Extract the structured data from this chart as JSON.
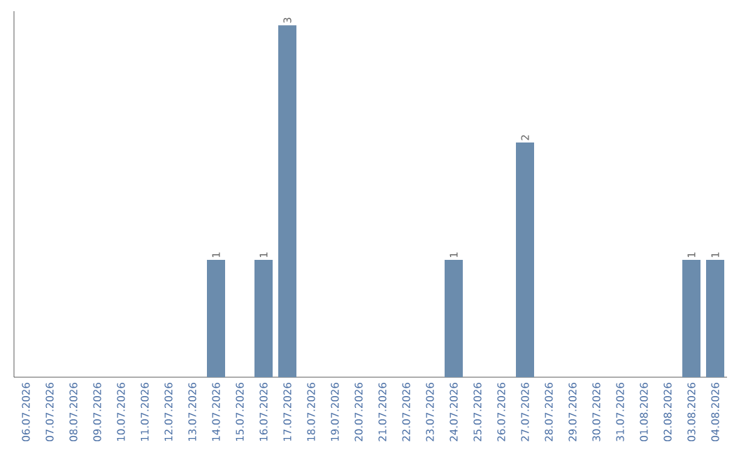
{
  "chart_data": {
    "type": "bar",
    "categories": [
      "06.07.2026",
      "07.07.2026",
      "08.07.2026",
      "09.07.2026",
      "10.07.2026",
      "11.07.2026",
      "12.07.2026",
      "13.07.2026",
      "14.07.2026",
      "15.07.2026",
      "16.07.2026",
      "17.07.2026",
      "18.07.2026",
      "19.07.2026",
      "20.07.2026",
      "21.07.2026",
      "22.07.2026",
      "23.07.2026",
      "24.07.2026",
      "25.07.2026",
      "26.07.2026",
      "27.07.2026",
      "28.07.2026",
      "29.07.2026",
      "30.07.2026",
      "31.07.2026",
      "01.08.2026",
      "02.08.2026",
      "03.08.2026",
      "04.08.2026"
    ],
    "values": [
      0,
      0,
      0,
      0,
      0,
      0,
      0,
      0,
      1,
      0,
      1,
      3,
      0,
      0,
      0,
      0,
      0,
      0,
      1,
      0,
      0,
      2,
      0,
      0,
      0,
      0,
      0,
      0,
      1,
      1
    ],
    "value_labels": [
      null,
      null,
      null,
      null,
      null,
      null,
      null,
      null,
      "1",
      null,
      "1",
      "3",
      null,
      null,
      null,
      null,
      null,
      null,
      "1",
      null,
      null,
      "2",
      null,
      null,
      null,
      null,
      null,
      null,
      "1",
      "1"
    ],
    "color": "#6b8cad"
  }
}
